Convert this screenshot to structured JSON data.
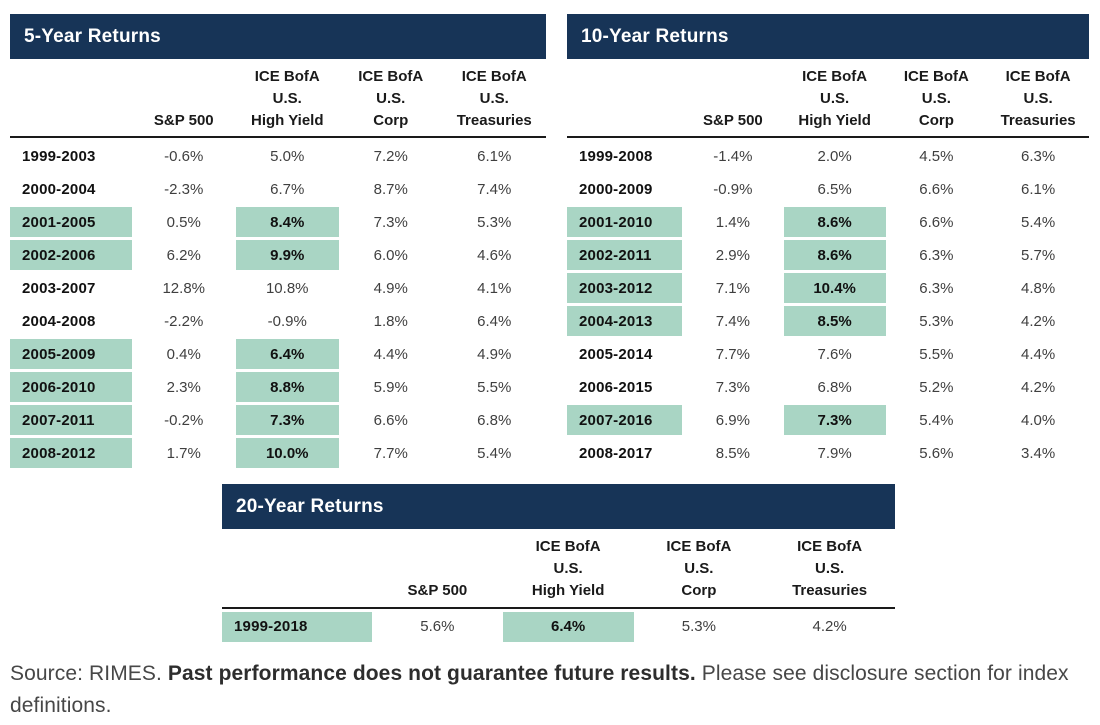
{
  "colors": {
    "title_bar_navy": "#173457",
    "highlight_green": "#a9d5c4"
  },
  "tables": [
    {
      "title": "5-Year Returns",
      "columns": [
        "",
        "S&P 500",
        "ICE BofA\nU.S.\nHigh Yield",
        "ICE BofA\nU.S.\nCorp",
        "ICE BofA\nU.S.\nTreasuries"
      ],
      "rows": [
        {
          "period": "1999-2003",
          "values": [
            "-0.6%",
            "5.0%",
            "7.2%",
            "6.1%"
          ],
          "highlight": false
        },
        {
          "period": "2000-2004",
          "values": [
            "-2.3%",
            "6.7%",
            "8.7%",
            "7.4%"
          ],
          "highlight": false
        },
        {
          "period": "2001-2005",
          "values": [
            "0.5%",
            "8.4%",
            "7.3%",
            "5.3%"
          ],
          "highlight": true
        },
        {
          "period": "2002-2006",
          "values": [
            "6.2%",
            "9.9%",
            "6.0%",
            "4.6%"
          ],
          "highlight": true
        },
        {
          "period": "2003-2007",
          "values": [
            "12.8%",
            "10.8%",
            "4.9%",
            "4.1%"
          ],
          "highlight": false
        },
        {
          "period": "2004-2008",
          "values": [
            "-2.2%",
            "-0.9%",
            "1.8%",
            "6.4%"
          ],
          "highlight": false
        },
        {
          "period": "2005-2009",
          "values": [
            "0.4%",
            "6.4%",
            "4.4%",
            "4.9%"
          ],
          "highlight": true
        },
        {
          "period": "2006-2010",
          "values": [
            "2.3%",
            "8.8%",
            "5.9%",
            "5.5%"
          ],
          "highlight": true
        },
        {
          "period": "2007-2011",
          "values": [
            "-0.2%",
            "7.3%",
            "6.6%",
            "6.8%"
          ],
          "highlight": true
        },
        {
          "period": "2008-2012",
          "values": [
            "1.7%",
            "10.0%",
            "7.7%",
            "5.4%"
          ],
          "highlight": true
        }
      ]
    },
    {
      "title": "10-Year Returns",
      "columns": [
        "",
        "S&P 500",
        "ICE BofA\nU.S.\nHigh Yield",
        "ICE BofA\nU.S.\nCorp",
        "ICE BofA\nU.S.\nTreasuries"
      ],
      "rows": [
        {
          "period": "1999-2008",
          "values": [
            "-1.4%",
            "2.0%",
            "4.5%",
            "6.3%"
          ],
          "highlight": false
        },
        {
          "period": "2000-2009",
          "values": [
            "-0.9%",
            "6.5%",
            "6.6%",
            "6.1%"
          ],
          "highlight": false
        },
        {
          "period": "2001-2010",
          "values": [
            "1.4%",
            "8.6%",
            "6.6%",
            "5.4%"
          ],
          "highlight": true
        },
        {
          "period": "2002-2011",
          "values": [
            "2.9%",
            "8.6%",
            "6.3%",
            "5.7%"
          ],
          "highlight": true
        },
        {
          "period": "2003-2012",
          "values": [
            "7.1%",
            "10.4%",
            "6.3%",
            "4.8%"
          ],
          "highlight": true
        },
        {
          "period": "2004-2013",
          "values": [
            "7.4%",
            "8.5%",
            "5.3%",
            "4.2%"
          ],
          "highlight": true
        },
        {
          "period": "2005-2014",
          "values": [
            "7.7%",
            "7.6%",
            "5.5%",
            "4.4%"
          ],
          "highlight": false
        },
        {
          "period": "2006-2015",
          "values": [
            "7.3%",
            "6.8%",
            "5.2%",
            "4.2%"
          ],
          "highlight": false
        },
        {
          "period": "2007-2016",
          "values": [
            "6.9%",
            "7.3%",
            "5.4%",
            "4.0%"
          ],
          "highlight": true
        },
        {
          "period": "2008-2017",
          "values": [
            "8.5%",
            "7.9%",
            "5.6%",
            "3.4%"
          ],
          "highlight": false
        }
      ]
    },
    {
      "title": "20-Year Returns",
      "columns": [
        "",
        "S&P 500",
        "ICE BofA\nU.S.\nHigh Yield",
        "ICE BofA\nU.S.\nCorp",
        "ICE BofA\nU.S.\nTreasuries"
      ],
      "rows": [
        {
          "period": "1999-2018",
          "values": [
            "5.6%",
            "6.4%",
            "5.3%",
            "4.2%"
          ],
          "highlight": true
        }
      ]
    }
  ],
  "footnote": {
    "prefix": "Source: RIMES. ",
    "bold": "Past performance does not guarantee future results.",
    "suffix": " Please see disclosure section for index definitions."
  }
}
